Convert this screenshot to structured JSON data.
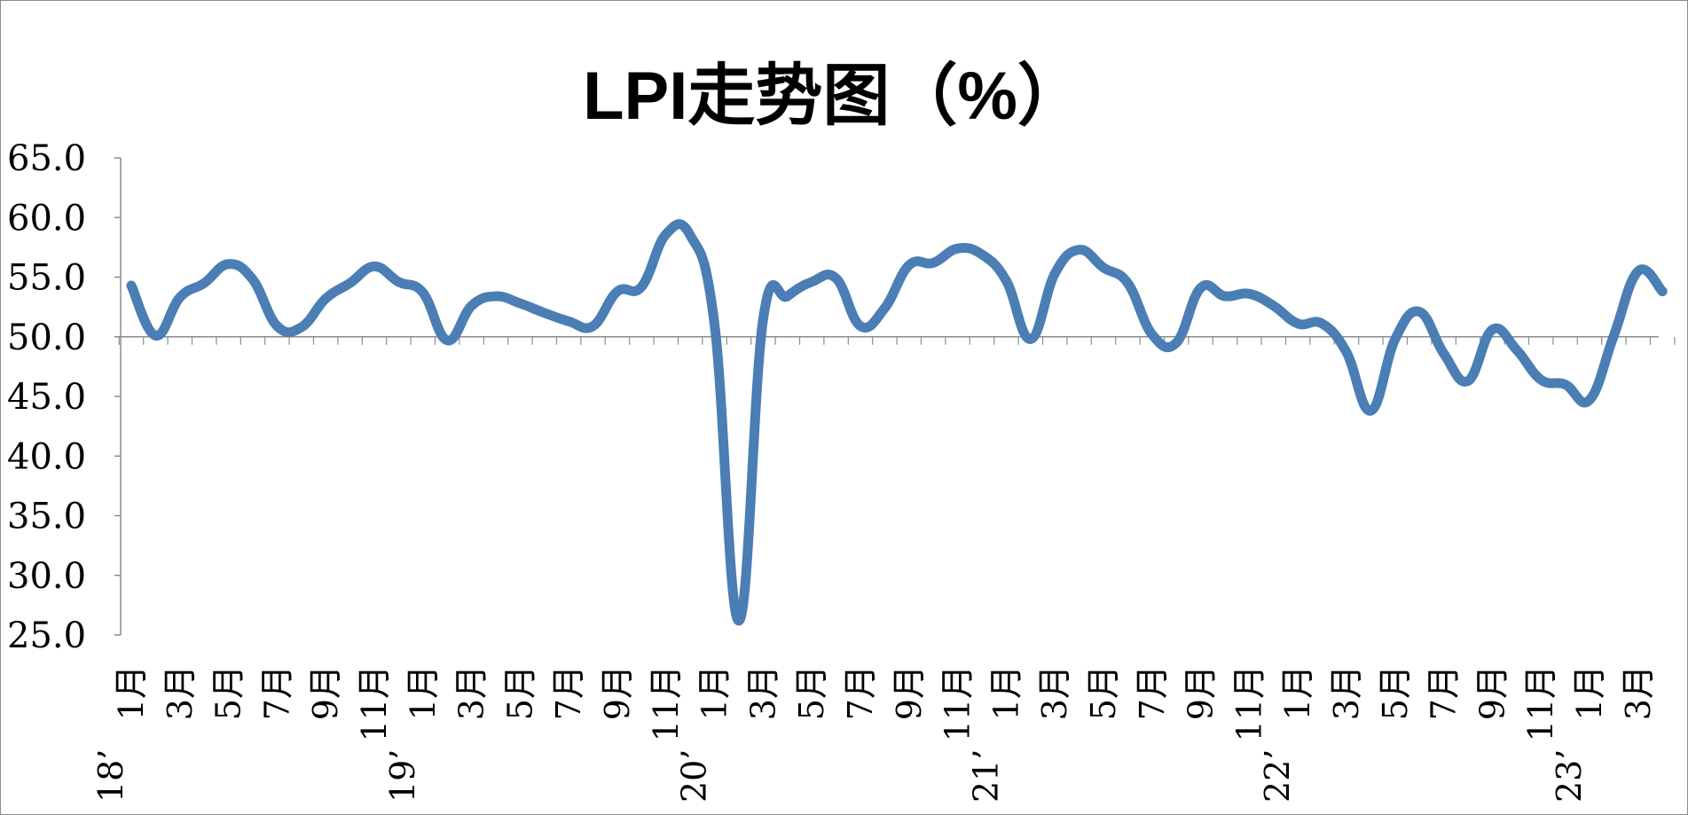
{
  "chart_data": {
    "type": "line",
    "title": "LPI走势图（%）",
    "xlabel": "",
    "ylabel": "",
    "ylim": [
      25.0,
      65.0
    ],
    "yticks": [
      "65.0",
      "60.0",
      "55.0",
      "50.0",
      "45.0",
      "40.0",
      "35.0",
      "30.0",
      "25.0"
    ],
    "baseline": 50.0,
    "grid": false,
    "line_color": "#4a7eb4",
    "x_month_labels": [
      "1月",
      "",
      "3月",
      "",
      "5月",
      "",
      "7月",
      "",
      "9月",
      "",
      "11月",
      "",
      "1月",
      "",
      "3月",
      "",
      "5月",
      "",
      "7月",
      "",
      "9月",
      "",
      "11月",
      "",
      "1月",
      "",
      "3月",
      "",
      "5月",
      "",
      "7月",
      "",
      "9月",
      "",
      "11月",
      "",
      "1月",
      "",
      "3月",
      "",
      "5月",
      "",
      "7月",
      "",
      "9月",
      "",
      "11月",
      "",
      "1月",
      "",
      "3月",
      "",
      "5月",
      "",
      "7月",
      "",
      "9月",
      "",
      "11月",
      "",
      "1月",
      "",
      "3月",
      ""
    ],
    "x_year_labels": [
      {
        "index": 0,
        "label": "18’"
      },
      {
        "index": 12,
        "label": "19’"
      },
      {
        "index": 24,
        "label": "20’"
      },
      {
        "index": 36,
        "label": "21’"
      },
      {
        "index": 48,
        "label": "22’"
      },
      {
        "index": 60,
        "label": "23’"
      }
    ],
    "series": [
      {
        "values": [
          54.3,
          50.1,
          53.3,
          54.5,
          56.1,
          54.8,
          50.9,
          50.8,
          53.2,
          54.5,
          55.9,
          54.6,
          53.7,
          49.7,
          52.6,
          53.4,
          52.8,
          52.0,
          51.3,
          50.9,
          53.8,
          54.2,
          58.6,
          58.5,
          51.0,
          26.2,
          51.5,
          53.4,
          54.6,
          54.9,
          50.9,
          52.4,
          56.0,
          56.2,
          57.4,
          56.9,
          54.7,
          49.8,
          55.3,
          57.3,
          55.8,
          54.5,
          50.2,
          49.5,
          54.1,
          53.4,
          53.6,
          52.6,
          51.1,
          51.1,
          48.7,
          43.8,
          49.8,
          52.1,
          48.6,
          46.3,
          50.6,
          48.9,
          46.4,
          46.0,
          44.7,
          50.1,
          55.5,
          53.8
        ]
      }
    ]
  }
}
